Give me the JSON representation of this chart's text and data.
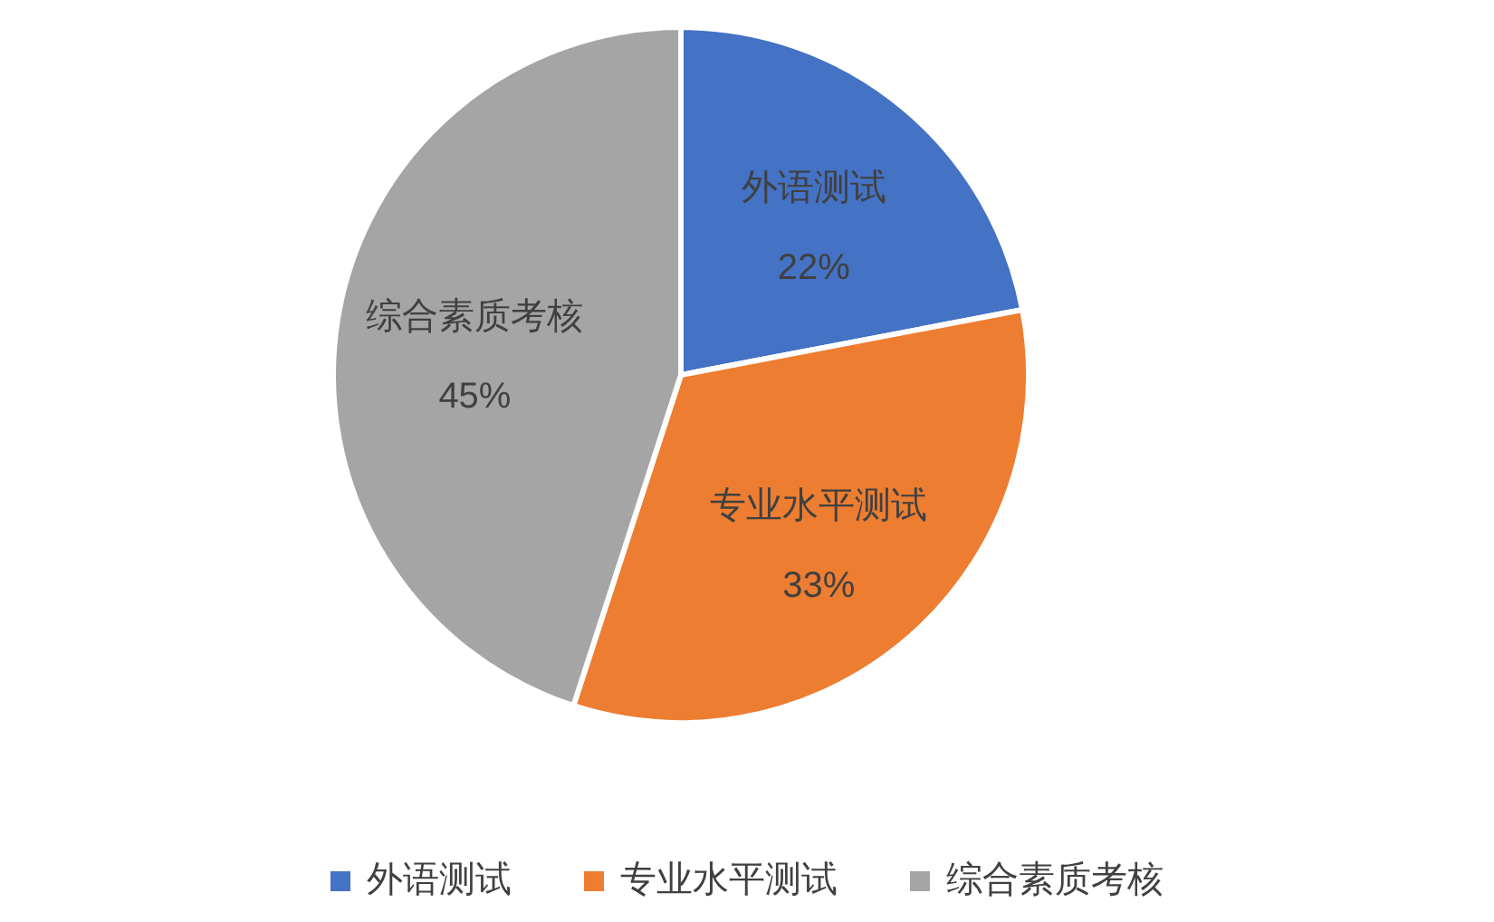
{
  "chart_data": {
    "type": "pie",
    "categories": [
      "外语测试",
      "专业水平测试",
      "综合素质考核"
    ],
    "values": [
      22,
      33,
      45
    ],
    "colors": [
      "#4472c4",
      "#ed7d31",
      "#a5a5a5"
    ],
    "value_labels": [
      "22%",
      "33%",
      "45%"
    ],
    "legend": "bottom"
  }
}
